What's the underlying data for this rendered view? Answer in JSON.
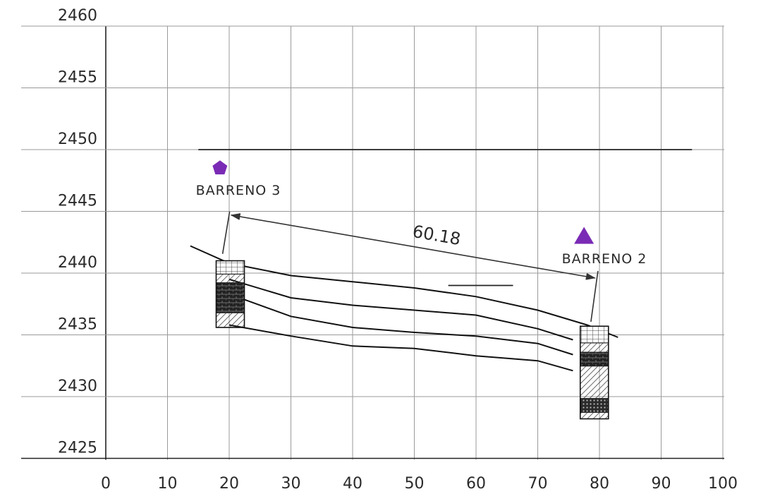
{
  "chart_data": {
    "type": "line",
    "x_ticks": [
      "0",
      "10",
      "20",
      "30",
      "40",
      "50",
      "60",
      "70",
      "80",
      "90",
      "100"
    ],
    "y_ticks": [
      "2460",
      "2455",
      "2450",
      "2445",
      "2440",
      "2435",
      "2430",
      "2425"
    ],
    "xlim": [
      0,
      100
    ],
    "ylim": [
      2425,
      2460
    ],
    "grid": true,
    "reference_line": {
      "y": 2450,
      "x_start": 15,
      "x_end": 95
    },
    "boreholes": [
      {
        "label": "BARRENO 3",
        "marker": "pentagon",
        "marker_color": "#7a2bb5",
        "marker_x": 18.5,
        "marker_y": 2448.5,
        "x": 18,
        "top": 2441.0,
        "bottom": 2435.6
      },
      {
        "label": "BARRENO 2",
        "marker": "triangle",
        "marker_color": "#7a2bb5",
        "marker_x": 77.5,
        "marker_y": 2443.0,
        "x": 77,
        "top": 2435.7,
        "bottom": 2428.2
      }
    ],
    "dimension": {
      "value": "60.18",
      "x1": 20.3,
      "y1": 2444.7,
      "x2": 79.3,
      "y2": 2439.6
    },
    "series": [
      {
        "x": [
          13.7,
          20,
          30,
          40,
          50,
          60,
          70,
          78,
          83
        ],
        "y": [
          2442.2,
          2440.8,
          2439.8,
          2439.3,
          2438.8,
          2438.1,
          2437.0,
          2435.8,
          2434.8
        ]
      },
      {
        "x": [
          20,
          30,
          40,
          50,
          60,
          70,
          75.7
        ],
        "y": [
          2439.5,
          2438.0,
          2437.4,
          2437.0,
          2436.6,
          2435.5,
          2434.6
        ]
      },
      {
        "x": [
          20,
          30,
          40,
          50,
          60,
          70,
          75.7
        ],
        "y": [
          2438.3,
          2436.5,
          2435.6,
          2435.2,
          2434.9,
          2434.3,
          2433.4
        ]
      },
      {
        "x": [
          20,
          30,
          40,
          50,
          60,
          70,
          75.7
        ],
        "y": [
          2435.8,
          2434.9,
          2434.1,
          2433.9,
          2433.3,
          2432.9,
          2432.1
        ]
      }
    ],
    "accent_line": {
      "x": [
        55.5,
        66.0
      ],
      "y": [
        2439.0,
        2439.0
      ]
    }
  }
}
